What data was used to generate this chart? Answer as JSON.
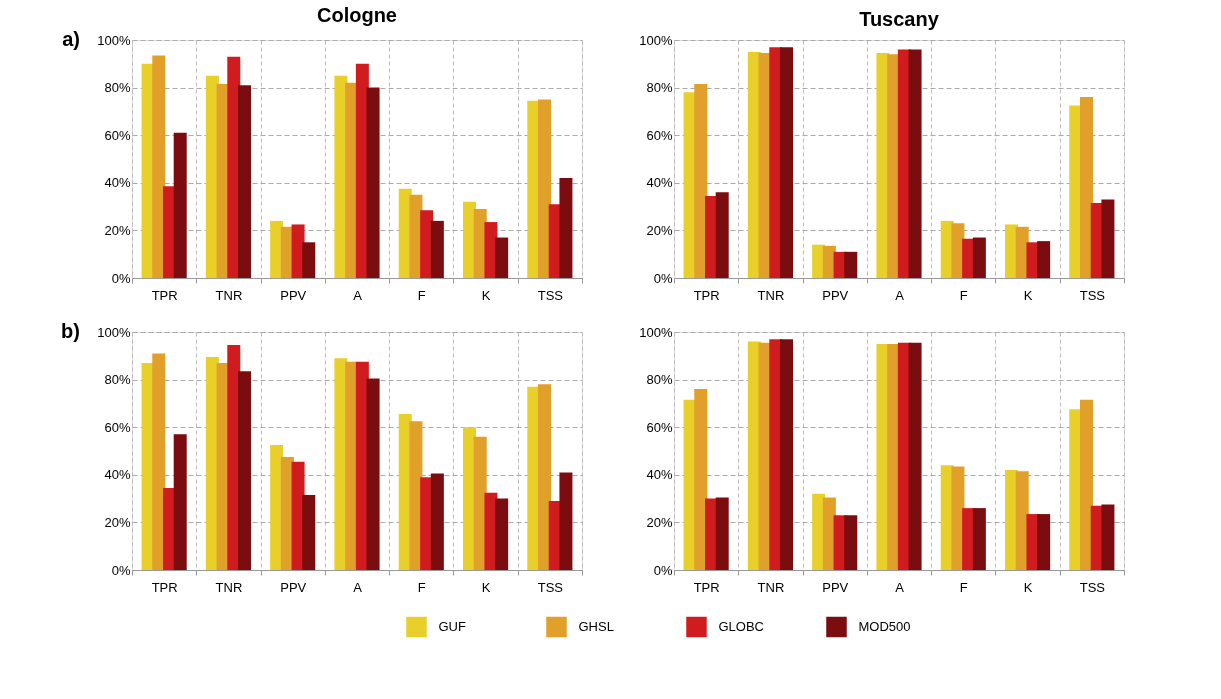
{
  "chart_data": [
    {
      "type": "bar",
      "title": "Cologne",
      "annotations": [
        "a)"
      ],
      "categories": [
        "TPR",
        "TNR",
        "PPV",
        "A",
        "F",
        "K",
        "TSS"
      ],
      "ylim": [
        0,
        100
      ],
      "yticks": [
        {
          "value": 0,
          "label": "0%"
        },
        {
          "value": 20,
          "label": "20%"
        },
        {
          "value": 40,
          "label": "40%"
        },
        {
          "value": 60,
          "label": "60%"
        },
        {
          "value": 80,
          "label": "80%"
        },
        {
          "value": 100,
          "label": "100%"
        }
      ],
      "grid": true,
      "legend": "bottom",
      "series": [
        {
          "name": "GUF",
          "color": "#e8cf2a",
          "values": [
            90,
            85,
            24,
            85,
            37.5,
            32,
            74.5
          ]
        },
        {
          "name": "GHSL",
          "color": "#e0a02a",
          "values": [
            93.5,
            81.5,
            21.5,
            82,
            35,
            29,
            75
          ]
        },
        {
          "name": "GLOBC",
          "color": "#d01c1f",
          "values": [
            38.5,
            93,
            22.5,
            90,
            28.5,
            23.5,
            31
          ]
        },
        {
          "name": "MOD500",
          "color": "#7b0d10",
          "values": [
            61,
            81,
            15,
            80,
            24,
            17,
            42
          ]
        }
      ]
    },
    {
      "type": "bar",
      "title": "Tuscany",
      "categories": [
        "TPR",
        "TNR",
        "PPV",
        "A",
        "F",
        "K",
        "TSS"
      ],
      "ylim": [
        0,
        100
      ],
      "yticks": [
        {
          "value": 0,
          "label": "0%"
        },
        {
          "value": 20,
          "label": "20%"
        },
        {
          "value": 40,
          "label": "40%"
        },
        {
          "value": 60,
          "label": "60%"
        },
        {
          "value": 80,
          "label": "80%"
        },
        {
          "value": 100,
          "label": "100%"
        }
      ],
      "grid": true,
      "series": [
        {
          "color": "#e8cf2a",
          "values": [
            78,
            95,
            14,
            94.5,
            24,
            22.5,
            72.5
          ]
        },
        {
          "color": "#e0a02a",
          "values": [
            81.5,
            94.5,
            13.5,
            94,
            23,
            21.5,
            76
          ]
        },
        {
          "color": "#d01c1f",
          "values": [
            34.5,
            97,
            11,
            96,
            16.5,
            15,
            31.5
          ]
        },
        {
          "color": "#7b0d10",
          "values": [
            36,
            97,
            11,
            96,
            17,
            15.5,
            33
          ]
        }
      ]
    },
    {
      "type": "bar",
      "annotations": [
        "b)"
      ],
      "categories": [
        "TPR",
        "TNR",
        "PPV",
        "A",
        "F",
        "K",
        "TSS"
      ],
      "ylim": [
        0,
        100
      ],
      "yticks": [
        {
          "value": 0,
          "label": "0%"
        },
        {
          "value": 20,
          "label": "20%"
        },
        {
          "value": 40,
          "label": "40%"
        },
        {
          "value": 60,
          "label": "60%"
        },
        {
          "value": 80,
          "label": "80%"
        },
        {
          "value": 100,
          "label": "100%"
        }
      ],
      "grid": true,
      "series": [
        {
          "color": "#e8cf2a",
          "values": [
            87,
            89.5,
            52.5,
            89,
            65.5,
            60,
            77
          ]
        },
        {
          "color": "#e0a02a",
          "values": [
            91,
            87,
            47.5,
            87.5,
            62.5,
            56,
            78
          ]
        },
        {
          "color": "#d01c1f",
          "values": [
            34.5,
            94.5,
            45.5,
            87.5,
            39,
            32.5,
            29
          ]
        },
        {
          "color": "#7b0d10",
          "values": [
            57,
            83.5,
            31.5,
            80.5,
            40.5,
            30,
            41
          ]
        }
      ]
    },
    {
      "type": "bar",
      "categories": [
        "TPR",
        "TNR",
        "PPV",
        "A",
        "F",
        "K",
        "TSS"
      ],
      "ylim": [
        0,
        100
      ],
      "yticks": [
        {
          "value": 0,
          "label": "0%"
        },
        {
          "value": 20,
          "label": "20%"
        },
        {
          "value": 40,
          "label": "40%"
        },
        {
          "value": 60,
          "label": "60%"
        },
        {
          "value": 80,
          "label": "80%"
        },
        {
          "value": 100,
          "label": "100%"
        }
      ],
      "grid": true,
      "series": [
        {
          "color": "#e8cf2a",
          "values": [
            71.5,
            96,
            32,
            95,
            44,
            42,
            67.5
          ]
        },
        {
          "color": "#e0a02a",
          "values": [
            76,
            95.5,
            30.5,
            95,
            43.5,
            41.5,
            71.5
          ]
        },
        {
          "color": "#d01c1f",
          "values": [
            30,
            97,
            23,
            95.5,
            26,
            23.5,
            27
          ]
        },
        {
          "color": "#7b0d10",
          "values": [
            30.5,
            97,
            23,
            95.5,
            26,
            23.5,
            27.5
          ]
        }
      ]
    }
  ]
}
